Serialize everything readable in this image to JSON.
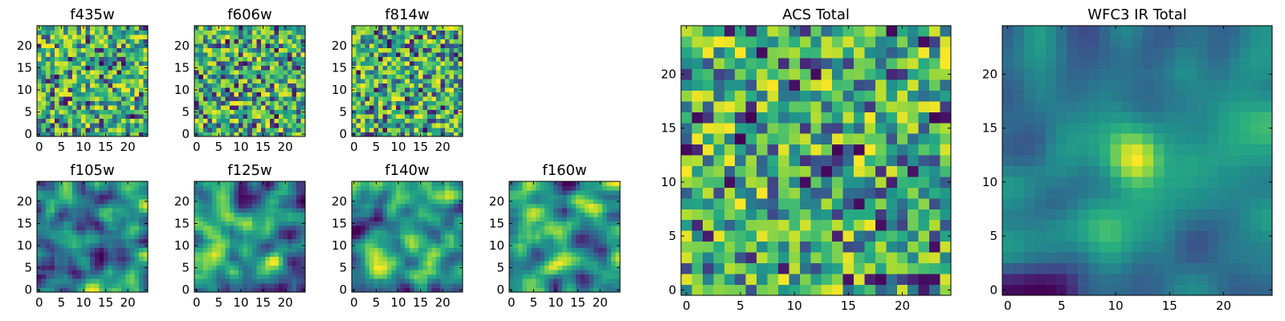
{
  "figure": {
    "colormap": "viridis",
    "colors": {
      "low": "#440154",
      "mid": "#21918c",
      "high": "#fde725",
      "background": "#ffffff"
    }
  },
  "chart_data": [
    {
      "type": "heatmap",
      "title": "f435w",
      "grid": [
        25,
        25
      ],
      "xlim": [
        -0.5,
        24.5
      ],
      "ylim": [
        -0.5,
        24.5
      ],
      "xticks": [
        "0",
        "5",
        "10",
        "15",
        "20"
      ],
      "yticks": [
        "0",
        "5",
        "10",
        "15",
        "20"
      ],
      "texture": "noise",
      "seed": 11,
      "values": "pixel intensities (random-like noise field)"
    },
    {
      "type": "heatmap",
      "title": "f606w",
      "grid": [
        25,
        25
      ],
      "xlim": [
        -0.5,
        24.5
      ],
      "ylim": [
        -0.5,
        24.5
      ],
      "xticks": [
        "0",
        "5",
        "10",
        "15",
        "20"
      ],
      "yticks": [
        "0",
        "5",
        "10",
        "15",
        "20"
      ],
      "texture": "noise",
      "seed": 23
    },
    {
      "type": "heatmap",
      "title": "f814w",
      "grid": [
        25,
        25
      ],
      "xlim": [
        -0.5,
        24.5
      ],
      "ylim": [
        -0.5,
        24.5
      ],
      "xticks": [
        "0",
        "5",
        "10",
        "15",
        "20"
      ],
      "yticks": [
        "0",
        "5",
        "10",
        "15",
        "20"
      ],
      "texture": "noise",
      "seed": 37
    },
    {
      "type": "heatmap",
      "title": "f105w",
      "grid": [
        25,
        25
      ],
      "xlim": [
        -0.5,
        24.5
      ],
      "ylim": [
        -0.5,
        24.5
      ],
      "xticks": [
        "0",
        "5",
        "10",
        "15",
        "20"
      ],
      "yticks": [
        "0",
        "5",
        "10",
        "15",
        "20"
      ],
      "texture": "smooth",
      "seed": 41
    },
    {
      "type": "heatmap",
      "title": "f125w",
      "grid": [
        25,
        25
      ],
      "xlim": [
        -0.5,
        24.5
      ],
      "ylim": [
        -0.5,
        24.5
      ],
      "xticks": [
        "0",
        "5",
        "10",
        "15",
        "20"
      ],
      "yticks": [
        "0",
        "5",
        "10",
        "15",
        "20"
      ],
      "texture": "smooth",
      "seed": 53
    },
    {
      "type": "heatmap",
      "title": "f140w",
      "grid": [
        25,
        25
      ],
      "xlim": [
        -0.5,
        24.5
      ],
      "ylim": [
        -0.5,
        24.5
      ],
      "xticks": [
        "0",
        "5",
        "10",
        "15",
        "20"
      ],
      "yticks": [
        "0",
        "5",
        "10",
        "15",
        "20"
      ],
      "texture": "smooth",
      "seed": 67
    },
    {
      "type": "heatmap",
      "title": "f160w",
      "grid": [
        25,
        25
      ],
      "xlim": [
        -0.5,
        24.5
      ],
      "ylim": [
        -0.5,
        24.5
      ],
      "xticks": [
        "0",
        "5",
        "10",
        "15",
        "20"
      ],
      "yticks": [
        "0",
        "5",
        "10",
        "15",
        "20"
      ],
      "texture": "smooth",
      "seed": 71
    },
    {
      "type": "heatmap",
      "title": "ACS Total",
      "grid": [
        25,
        25
      ],
      "xlim": [
        -0.5,
        24.5
      ],
      "ylim": [
        -0.5,
        24.5
      ],
      "xticks": [
        "0",
        "5",
        "10",
        "15",
        "20"
      ],
      "yticks": [
        "0",
        "5",
        "10",
        "15",
        "20"
      ],
      "texture": "noise",
      "seed": 83
    },
    {
      "type": "heatmap",
      "title": "WFC3 IR Total",
      "grid": [
        25,
        25
      ],
      "xlim": [
        -0.5,
        24.5
      ],
      "ylim": [
        -0.5,
        24.5
      ],
      "xticks": [
        "0",
        "5",
        "10",
        "15",
        "20"
      ],
      "yticks": [
        "0",
        "5",
        "10",
        "15",
        "20"
      ],
      "texture": "smooth_blob",
      "seed": 97,
      "peak": [
        12,
        12
      ]
    }
  ]
}
